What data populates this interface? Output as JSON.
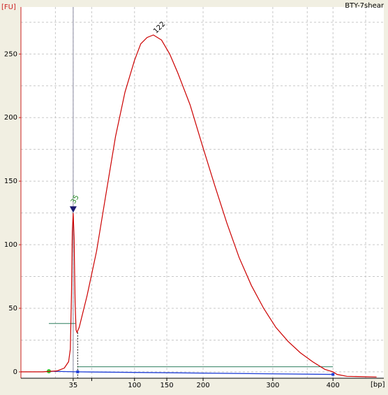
{
  "chart_data": {
    "type": "line",
    "title": "BTY-7shear",
    "ylabel": "[FU]",
    "xlabel": "[bp]",
    "ylim": [
      -5,
      287
    ],
    "y_ticks": [
      0,
      50,
      100,
      150,
      200,
      250
    ],
    "x_ticks": [
      {
        "label": "35",
        "bp": 35
      },
      {
        "label": "100",
        "bp": 100
      },
      {
        "label": "150",
        "bp": 150
      },
      {
        "label": "200",
        "bp": 200
      },
      {
        "label": "300",
        "bp": 300
      },
      {
        "label": "400",
        "bp": 400
      }
    ],
    "grid": true,
    "series": [
      {
        "color": "#cc0000",
        "values": [
          [
            0.0,
            0.0
          ],
          [
            0.18,
            0.0
          ],
          [
            0.23,
            0.8
          ],
          [
            0.255,
            3
          ],
          [
            0.27,
            8
          ],
          [
            0.276,
            18
          ],
          [
            0.28,
            60
          ],
          [
            0.283,
            110
          ],
          [
            0.286,
            125
          ],
          [
            0.289,
            105
          ],
          [
            0.292,
            55
          ],
          [
            0.295,
            33
          ],
          [
            0.298,
            31
          ],
          [
            0.305,
            35
          ],
          [
            0.33,
            60
          ],
          [
            0.36,
            95
          ],
          [
            0.39,
            140
          ],
          [
            0.42,
            185
          ],
          [
            0.45,
            220
          ],
          [
            0.48,
            245
          ],
          [
            0.5,
            258
          ],
          [
            0.52,
            263
          ],
          [
            0.54,
            265
          ],
          [
            0.56,
            261
          ],
          [
            0.58,
            250
          ],
          [
            0.6,
            235
          ],
          [
            0.63,
            210
          ],
          [
            0.66,
            178
          ],
          [
            0.69,
            147
          ],
          [
            0.72,
            117
          ],
          [
            0.75,
            90
          ],
          [
            0.78,
            68
          ],
          [
            0.81,
            50
          ],
          [
            0.84,
            35
          ],
          [
            0.87,
            24
          ],
          [
            0.9,
            15
          ],
          [
            0.93,
            8
          ],
          [
            0.96,
            2
          ],
          [
            0.98,
            0
          ],
          [
            1.0,
            -2
          ],
          [
            1.05,
            -3.5
          ],
          [
            1.2,
            -4
          ]
        ]
      }
    ],
    "peaks": [
      {
        "label": "35",
        "color": "#228822",
        "marker_color": "#1a1a6e"
      },
      {
        "label": "122",
        "color": "#000000"
      }
    ],
    "annotations": {
      "baseline_color": "#1f3fd6",
      "region_line_color": "#2f7f5f",
      "green_marker_color": "#33cc33"
    }
  }
}
